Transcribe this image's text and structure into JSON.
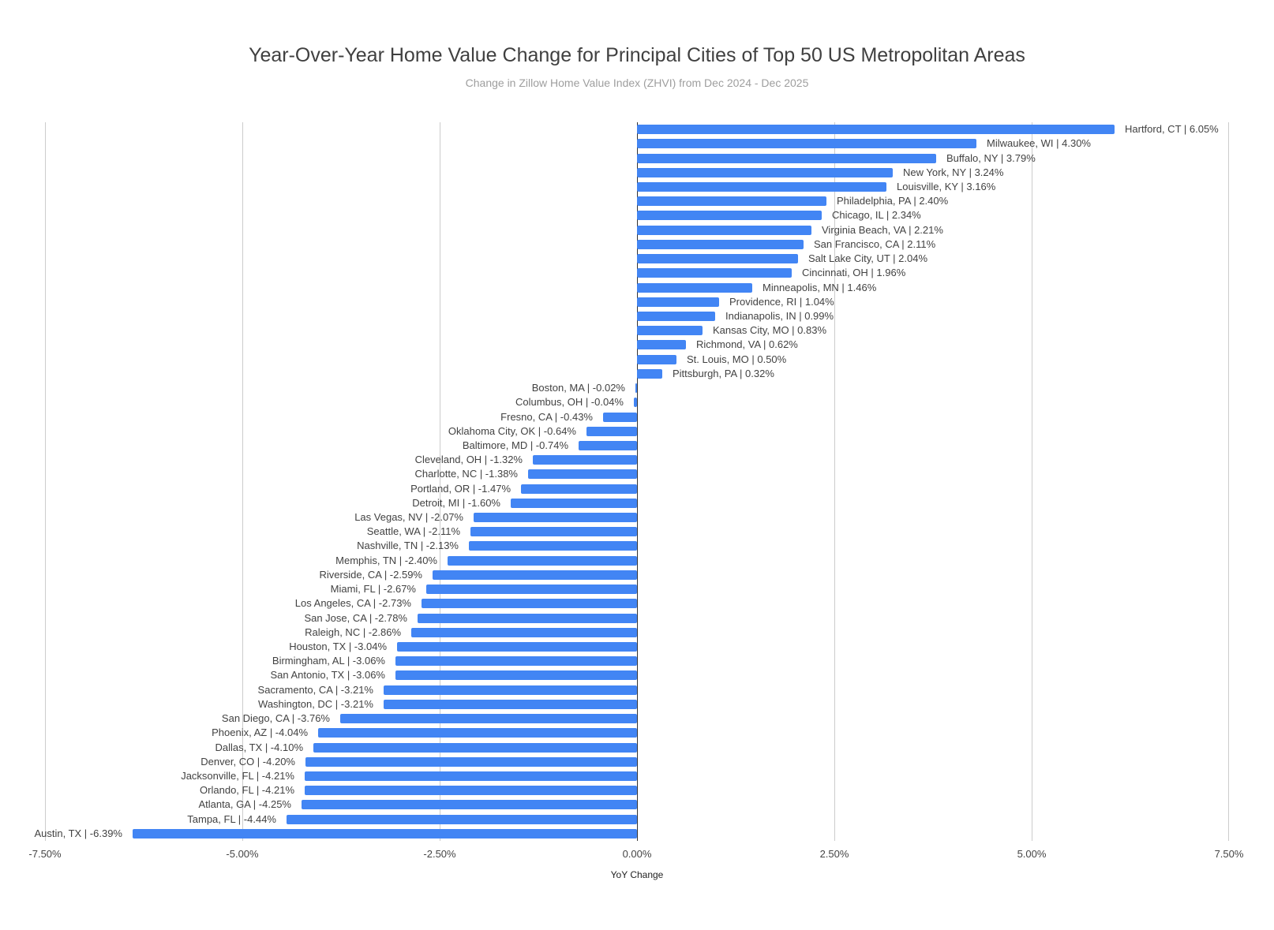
{
  "header": {
    "title": "Year-Over-Year Home Value Change for Principal Cities of Top 50 US Metropolitan Areas",
    "subtitle": "Change in Zillow Home Value Index (ZHVI) from Dec 2024 - Dec 2025"
  },
  "chart_data": {
    "type": "bar",
    "orientation": "horizontal",
    "title": "Year-Over-Year Home Value Change for Principal Cities of Top 50 US Metropolitan Areas",
    "subtitle": "Change in Zillow Home Value Index (ZHVI) from Dec 2024 - Dec 2025",
    "xlabel": "YoY Change",
    "ylabel": "",
    "xlim": [
      -7.5,
      7.5
    ],
    "grid": true,
    "legend": "none",
    "bar_color": "#4285F4",
    "gridline_color": "#cccccc",
    "baseline_color": "#333333",
    "x_ticks": [
      {
        "value": -7.5,
        "label": "-7.50%"
      },
      {
        "value": -5.0,
        "label": "-5.00%"
      },
      {
        "value": -2.5,
        "label": "-2.50%"
      },
      {
        "value": 0.0,
        "label": "0.00%"
      },
      {
        "value": 2.5,
        "label": "2.50%"
      },
      {
        "value": 5.0,
        "label": "5.00%"
      },
      {
        "value": 7.5,
        "label": "7.50%"
      }
    ],
    "series": [
      {
        "name": "YoY Change",
        "points": [
          {
            "category": "Hartford, CT",
            "value": 6.05,
            "label": "Hartford, CT | 6.05%"
          },
          {
            "category": "Milwaukee, WI",
            "value": 4.3,
            "label": "Milwaukee, WI | 4.30%"
          },
          {
            "category": "Buffalo, NY",
            "value": 3.79,
            "label": "Buffalo, NY | 3.79%"
          },
          {
            "category": "New York, NY",
            "value": 3.24,
            "label": "New York, NY | 3.24%"
          },
          {
            "category": "Louisville, KY",
            "value": 3.16,
            "label": "Louisville, KY | 3.16%"
          },
          {
            "category": "Philadelphia, PA",
            "value": 2.4,
            "label": "Philadelphia, PA | 2.40%"
          },
          {
            "category": "Chicago, IL",
            "value": 2.34,
            "label": "Chicago, IL | 2.34%"
          },
          {
            "category": "Virginia Beach, VA",
            "value": 2.21,
            "label": "Virginia Beach, VA | 2.21%"
          },
          {
            "category": "San Francisco, CA",
            "value": 2.11,
            "label": "San Francisco, CA | 2.11%"
          },
          {
            "category": "Salt Lake City, UT",
            "value": 2.04,
            "label": "Salt Lake City, UT | 2.04%"
          },
          {
            "category": "Cincinnati, OH",
            "value": 1.96,
            "label": "Cincinnati, OH | 1.96%"
          },
          {
            "category": "Minneapolis, MN",
            "value": 1.46,
            "label": "Minneapolis, MN | 1.46%"
          },
          {
            "category": "Providence, RI",
            "value": 1.04,
            "label": "Providence, RI | 1.04%"
          },
          {
            "category": "Indianapolis, IN",
            "value": 0.99,
            "label": "Indianapolis, IN | 0.99%"
          },
          {
            "category": "Kansas City, MO",
            "value": 0.83,
            "label": "Kansas City, MO | 0.83%"
          },
          {
            "category": "Richmond, VA",
            "value": 0.62,
            "label": "Richmond, VA | 0.62%"
          },
          {
            "category": "St. Louis, MO",
            "value": 0.5,
            "label": "St. Louis, MO | 0.50%"
          },
          {
            "category": "Pittsburgh, PA",
            "value": 0.32,
            "label": "Pittsburgh, PA | 0.32%"
          },
          {
            "category": "Boston, MA",
            "value": -0.02,
            "label": "Boston, MA | -0.02%"
          },
          {
            "category": "Columbus, OH",
            "value": -0.04,
            "label": "Columbus, OH | -0.04%"
          },
          {
            "category": "Fresno, CA",
            "value": -0.43,
            "label": "Fresno, CA | -0.43%"
          },
          {
            "category": "Oklahoma City, OK",
            "value": -0.64,
            "label": "Oklahoma City, OK | -0.64%"
          },
          {
            "category": "Baltimore, MD",
            "value": -0.74,
            "label": "Baltimore, MD | -0.74%"
          },
          {
            "category": "Cleveland, OH",
            "value": -1.32,
            "label": "Cleveland, OH | -1.32%"
          },
          {
            "category": "Charlotte, NC",
            "value": -1.38,
            "label": "Charlotte, NC | -1.38%"
          },
          {
            "category": "Portland, OR",
            "value": -1.47,
            "label": "Portland, OR | -1.47%"
          },
          {
            "category": "Detroit, MI",
            "value": -1.6,
            "label": "Detroit, MI | -1.60%"
          },
          {
            "category": "Las Vegas, NV",
            "value": -2.07,
            "label": "Las Vegas, NV | -2.07%"
          },
          {
            "category": "Seattle, WA",
            "value": -2.11,
            "label": "Seattle, WA | -2.11%"
          },
          {
            "category": "Nashville, TN",
            "value": -2.13,
            "label": "Nashville, TN | -2.13%"
          },
          {
            "category": "Memphis, TN",
            "value": -2.4,
            "label": "Memphis, TN | -2.40%"
          },
          {
            "category": "Riverside, CA",
            "value": -2.59,
            "label": "Riverside, CA | -2.59%"
          },
          {
            "category": "Miami, FL",
            "value": -2.67,
            "label": "Miami, FL | -2.67%"
          },
          {
            "category": "Los Angeles, CA",
            "value": -2.73,
            "label": "Los Angeles, CA | -2.73%"
          },
          {
            "category": "San Jose, CA",
            "value": -2.78,
            "label": "San Jose, CA | -2.78%"
          },
          {
            "category": "Raleigh, NC",
            "value": -2.86,
            "label": "Raleigh, NC | -2.86%"
          },
          {
            "category": "Houston, TX",
            "value": -3.04,
            "label": "Houston, TX | -3.04%"
          },
          {
            "category": "Birmingham, AL",
            "value": -3.06,
            "label": "Birmingham, AL | -3.06%"
          },
          {
            "category": "San Antonio, TX",
            "value": -3.06,
            "label": "San Antonio, TX | -3.06%"
          },
          {
            "category": "Sacramento, CA",
            "value": -3.21,
            "label": "Sacramento, CA | -3.21%"
          },
          {
            "category": "Washington, DC",
            "value": -3.21,
            "label": "Washington, DC | -3.21%"
          },
          {
            "category": "San Diego, CA",
            "value": -3.76,
            "label": "San Diego, CA | -3.76%"
          },
          {
            "category": "Phoenix, AZ",
            "value": -4.04,
            "label": "Phoenix, AZ | -4.04%"
          },
          {
            "category": "Dallas, TX",
            "value": -4.1,
            "label": "Dallas, TX | -4.10%"
          },
          {
            "category": "Denver, CO",
            "value": -4.2,
            "label": "Denver, CO | -4.20%"
          },
          {
            "category": "Jacksonville, FL",
            "value": -4.21,
            "label": "Jacksonville, FL | -4.21%"
          },
          {
            "category": "Orlando, FL",
            "value": -4.21,
            "label": "Orlando, FL | -4.21%"
          },
          {
            "category": "Atlanta, GA",
            "value": -4.25,
            "label": "Atlanta, GA | -4.25%"
          },
          {
            "category": "Tampa, FL",
            "value": -4.44,
            "label": "Tampa, FL | -4.44%"
          },
          {
            "category": "Austin, TX",
            "value": -6.39,
            "label": "Austin, TX | -6.39%"
          }
        ]
      }
    ]
  }
}
